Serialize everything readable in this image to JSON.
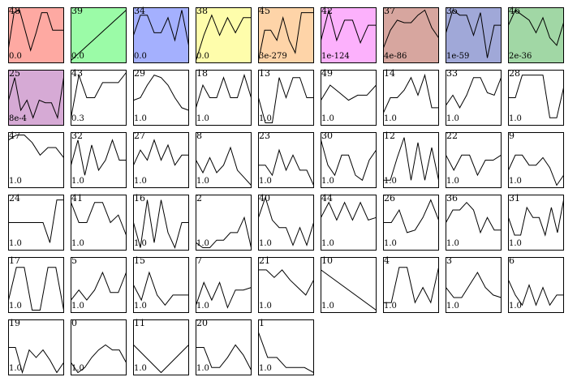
{
  "chart_data": {
    "type": "line",
    "panels": [
      {
        "id": "48",
        "value": "0.0",
        "color": "#fea9a2",
        "y": [
          0.25,
          0.95,
          1.0,
          0.6,
          0.2,
          0.55,
          0.95,
          0.95,
          0.6,
          0.6,
          0.6
        ]
      },
      {
        "id": "39",
        "value": "0.0",
        "color": "#9bfba7",
        "y": [
          0.0,
          0.1,
          0.2,
          0.3,
          0.4,
          0.5,
          0.6,
          0.7,
          0.8,
          0.9,
          1.0
        ]
      },
      {
        "id": "34",
        "value": "0.0",
        "color": "#a4b0fe",
        "y": [
          0.5,
          0.9,
          0.9,
          0.55,
          0.55,
          0.85,
          0.4,
          1.0,
          0.3
        ]
      },
      {
        "id": "38",
        "value": "0.0",
        "color": "#fefdab",
        "y": [
          0.0,
          0.5,
          0.9,
          0.5,
          0.85,
          0.55,
          0.85,
          0.85
        ]
      },
      {
        "id": "45",
        "value": "3e-279",
        "color": "#fed4a8",
        "y": [
          0.0,
          0.6,
          0.6,
          0.4,
          0.85,
          0.4,
          0.15,
          0.95,
          0.95,
          0.95
        ]
      },
      {
        "id": "42",
        "value": "1e-124",
        "color": "#fcb1fc",
        "y": [
          0.4,
          1.0,
          0.4,
          0.8,
          0.8,
          0.35,
          0.7,
          0.7
        ]
      },
      {
        "id": "37",
        "value": "4e-86",
        "color": "#d7a69f",
        "y": [
          0.25,
          0.6,
          0.8,
          0.75,
          0.75,
          0.9,
          1.0,
          0.65,
          0.45
        ]
      },
      {
        "id": "35",
        "value": "1e-59",
        "color": "#a0a8d8",
        "y": [
          0.55,
          1.0,
          0.9,
          0.9,
          0.5,
          0.95,
          0.05,
          0.7,
          0.7
        ]
      },
      {
        "id": "46",
        "value": "2e-36",
        "color": "#a1d7a5",
        "y": [
          0.7,
          1.0,
          0.9,
          0.8,
          0.55,
          0.85,
          0.45,
          0.3,
          0.75
        ]
      },
      {
        "id": "25",
        "value": "8e-4",
        "color": "#d6aad5",
        "y": [
          0.45,
          0.9,
          0.25,
          0.45,
          0.1,
          0.45,
          0.4,
          0.4,
          0.1,
          0.9
        ]
      },
      {
        "id": "43",
        "value": "0.3",
        "color": null,
        "y": [
          0.1,
          0.95,
          0.5,
          0.5,
          0.8,
          0.8,
          0.8,
          1.0
        ]
      },
      {
        "id": "29",
        "value": "1.0",
        "color": null,
        "y": [
          0.45,
          0.5,
          0.75,
          0.95,
          0.9,
          0.75,
          0.5,
          0.3,
          0.25
        ]
      },
      {
        "id": "18",
        "value": "1.0",
        "color": null,
        "y": [
          0.3,
          0.75,
          0.5,
          0.5,
          0.9,
          0.5,
          0.5,
          0.95,
          0.5
        ]
      },
      {
        "id": "13",
        "value": "1.0",
        "color": null,
        "y": [
          0.5,
          0.0,
          0.0,
          0.9,
          0.5,
          0.9,
          0.9,
          0.5,
          0.5
        ]
      },
      {
        "id": "49",
        "value": "1.0",
        "color": null,
        "y": [
          0.45,
          0.75,
          0.6,
          0.45,
          0.55,
          0.55,
          0.75
        ]
      },
      {
        "id": "14",
        "value": "1.0",
        "color": null,
        "y": [
          0.2,
          0.5,
          0.5,
          0.65,
          0.9,
          0.55,
          0.95,
          0.3,
          0.3
        ]
      },
      {
        "id": "33",
        "value": "1.0",
        "color": null,
        "y": [
          0.35,
          0.55,
          0.3,
          0.55,
          0.9,
          0.9,
          0.6,
          0.55,
          0.9
        ]
      },
      {
        "id": "28",
        "value": "1.0",
        "color": null,
        "y": [
          0.5,
          0.5,
          0.95,
          0.95,
          0.95,
          0.95,
          0.1,
          0.1,
          0.7
        ]
      },
      {
        "id": "47",
        "value": "1.0",
        "color": null,
        "y": [
          0.9,
          1.0,
          1.0,
          0.85,
          0.6,
          0.75,
          0.75,
          0.55
        ]
      },
      {
        "id": "32",
        "value": "1.0",
        "color": null,
        "y": [
          0.4,
          0.9,
          0.2,
          0.8,
          0.3,
          0.5,
          0.9,
          0.5,
          0.5
        ]
      },
      {
        "id": "27",
        "value": "1.0",
        "color": null,
        "y": [
          0.4,
          0.7,
          0.5,
          0.9,
          0.5,
          0.8,
          0.4,
          0.6,
          0.6
        ]
      },
      {
        "id": "8",
        "value": "1.0",
        "color": null,
        "y": [
          0.5,
          0.25,
          0.55,
          0.25,
          0.4,
          0.75,
          0.3,
          0.15,
          0.0
        ]
      },
      {
        "id": "23",
        "value": "1.0",
        "color": null,
        "y": [
          0.4,
          0.4,
          0.2,
          0.7,
          0.3,
          0.6,
          0.3,
          0.3,
          0.0
        ]
      },
      {
        "id": "30",
        "value": "1.0",
        "color": null,
        "y": [
          0.9,
          0.4,
          0.2,
          0.6,
          0.6,
          0.2,
          0.1,
          0.5,
          0.7
        ]
      },
      {
        "id": "12",
        "value": "1.0",
        "color": null,
        "y": [
          0.1,
          0.1,
          0.55,
          0.95,
          0.1,
          0.85,
          0.1,
          0.75,
          0.1
        ]
      },
      {
        "id": "22",
        "value": "1.0",
        "color": null,
        "y": [
          0.6,
          0.3,
          0.6,
          0.6,
          0.2,
          0.5,
          0.5,
          0.6
        ]
      },
      {
        "id": "9",
        "value": "1.0",
        "color": null,
        "y": [
          0.3,
          0.6,
          0.6,
          0.4,
          0.4,
          0.55,
          0.35,
          0.0,
          0.2
        ]
      },
      {
        "id": "24",
        "value": "1.0",
        "color": null,
        "y": [
          0.5,
          0.5,
          0.5,
          0.5,
          0.5,
          0.5,
          0.1,
          0.95,
          0.95
        ]
      },
      {
        "id": "41",
        "value": "1.0",
        "color": null,
        "y": [
          0.9,
          0.5,
          0.5,
          0.9,
          0.9,
          0.5,
          0.65,
          0.25
        ]
      },
      {
        "id": "16",
        "value": "1.0",
        "color": null,
        "y": [
          0.5,
          0.0,
          0.95,
          0.1,
          0.95,
          0.3,
          0.0,
          0.5,
          0.5
        ]
      },
      {
        "id": "2",
        "value": "1.0",
        "color": null,
        "y": [
          0.1,
          0.0,
          0.0,
          0.15,
          0.15,
          0.3,
          0.3,
          0.6,
          0.0
        ]
      },
      {
        "id": "40",
        "value": "1.0",
        "color": null,
        "y": [
          0.6,
          1.0,
          0.55,
          0.4,
          0.4,
          0.05,
          0.4,
          0.05,
          0.5
        ]
      },
      {
        "id": "44",
        "value": "1.0",
        "color": null,
        "y": [
          0.6,
          0.9,
          0.55,
          0.9,
          0.55,
          0.9,
          0.55,
          0.6
        ]
      },
      {
        "id": "26",
        "value": "1.0",
        "color": null,
        "y": [
          0.5,
          0.5,
          0.75,
          0.3,
          0.35,
          0.6,
          0.95,
          0.55
        ]
      },
      {
        "id": "36",
        "value": "1.0",
        "color": null,
        "y": [
          0.5,
          0.75,
          0.75,
          0.9,
          0.75,
          0.3,
          0.6,
          0.35,
          0.35
        ]
      },
      {
        "id": "31",
        "value": "1.0",
        "color": null,
        "y": [
          0.6,
          0.25,
          0.25,
          0.8,
          0.6,
          0.6,
          0.25,
          0.8,
          0.3,
          0.95
        ]
      },
      {
        "id": "17",
        "value": "1.0",
        "color": null,
        "y": [
          0.2,
          0.85,
          0.85,
          0.0,
          0.0,
          0.85,
          0.85,
          0.0
        ]
      },
      {
        "id": "5",
        "value": "1.0",
        "color": null,
        "y": [
          0.2,
          0.4,
          0.2,
          0.4,
          0.75,
          0.35,
          0.35,
          0.75
        ]
      },
      {
        "id": "15",
        "value": "1.0",
        "color": null,
        "y": [
          0.5,
          0.2,
          0.75,
          0.3,
          0.1,
          0.3,
          0.3,
          0.3
        ]
      },
      {
        "id": "7",
        "value": "1.0",
        "color": null,
        "y": [
          0.1,
          0.55,
          0.2,
          0.55,
          0.05,
          0.4,
          0.4,
          0.45
        ]
      },
      {
        "id": "21",
        "value": "1.0",
        "color": null,
        "y": [
          0.8,
          0.8,
          0.65,
          0.8,
          0.6,
          0.45,
          0.3,
          0.6
        ]
      },
      {
        "id": "10",
        "value": "1.0",
        "color": null,
        "y": [
          0.8,
          0.0
        ]
      },
      {
        "id": "4",
        "value": "1.0",
        "color": null,
        "y": [
          0.15,
          0.15,
          0.85,
          0.85,
          0.15,
          0.45,
          0.15,
          0.85
        ]
      },
      {
        "id": "3",
        "value": "1.0",
        "color": null,
        "y": [
          0.45,
          0.25,
          0.25,
          0.5,
          0.75,
          0.45,
          0.3,
          0.25
        ]
      },
      {
        "id": "6",
        "value": "1.0",
        "color": null,
        "y": [
          0.6,
          0.3,
          0.1,
          0.5,
          0.1,
          0.45,
          0.1,
          0.3,
          0.3
        ]
      },
      {
        "id": "19",
        "value": "1.0",
        "color": null,
        "y": [
          0.5,
          0.5,
          0.0,
          0.45,
          0.3,
          0.45,
          0.25,
          0.0,
          0.2
        ]
      },
      {
        "id": "0",
        "value": "1.0",
        "color": null,
        "y": [
          0.2,
          0.0,
          0.1,
          0.3,
          0.45,
          0.55,
          0.45,
          0.45,
          0.2
        ]
      },
      {
        "id": "11",
        "value": "1.0",
        "color": null,
        "y": [
          0.55,
          0.0,
          0.55
        ]
      },
      {
        "id": "20",
        "value": "1.0",
        "color": null,
        "y": [
          0.5,
          0.5,
          0.1,
          0.1,
          0.3,
          0.55,
          0.35,
          0.05
        ]
      },
      {
        "id": "1",
        "value": "1.0",
        "color": null,
        "y": [
          0.8,
          0.3,
          0.3,
          0.1,
          0.1,
          0.1,
          0.0
        ]
      }
    ]
  }
}
